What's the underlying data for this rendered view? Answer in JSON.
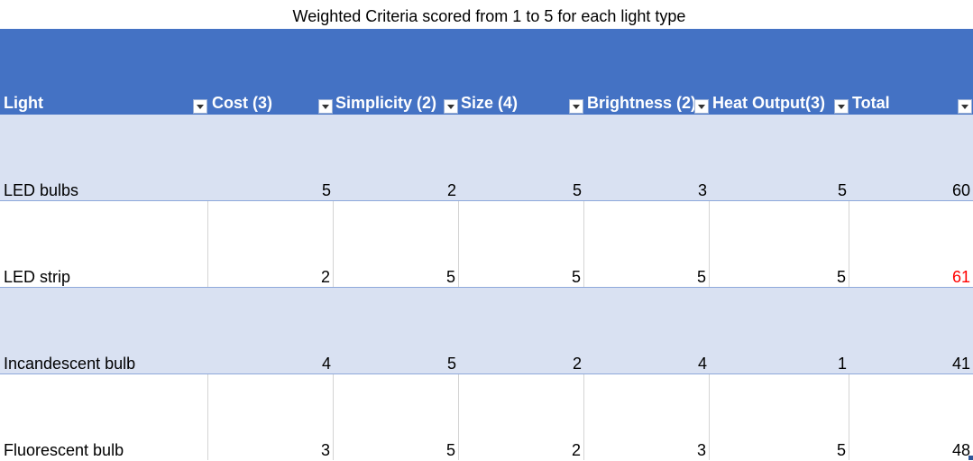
{
  "title": "Weighted Criteria scored from 1 to 5 for each light type",
  "colors": {
    "header_bg": "#4472c4",
    "band_bg": "#d9e1f2",
    "highlight_text": "#ff0000"
  },
  "table": {
    "headers": [
      "Light",
      "Cost (3)",
      "Simplicity (2)",
      "Size (4)",
      "Brightness (2)",
      "Heat Output(3)",
      "Total"
    ],
    "rows": [
      {
        "light": "LED bulbs",
        "cost": "5",
        "simplicity": "2",
        "size": "5",
        "brightness": "3",
        "heat": "5",
        "total": "60"
      },
      {
        "light": "LED strip",
        "cost": "2",
        "simplicity": "5",
        "size": "5",
        "brightness": "5",
        "heat": "5",
        "total": "61"
      },
      {
        "light": "Incandescent bulb",
        "cost": "4",
        "simplicity": "5",
        "size": "2",
        "brightness": "4",
        "heat": "1",
        "total": "41"
      },
      {
        "light": "Fluorescent bulb",
        "cost": "3",
        "simplicity": "5",
        "size": "2",
        "brightness": "3",
        "heat": "5",
        "total": "48"
      }
    ]
  }
}
